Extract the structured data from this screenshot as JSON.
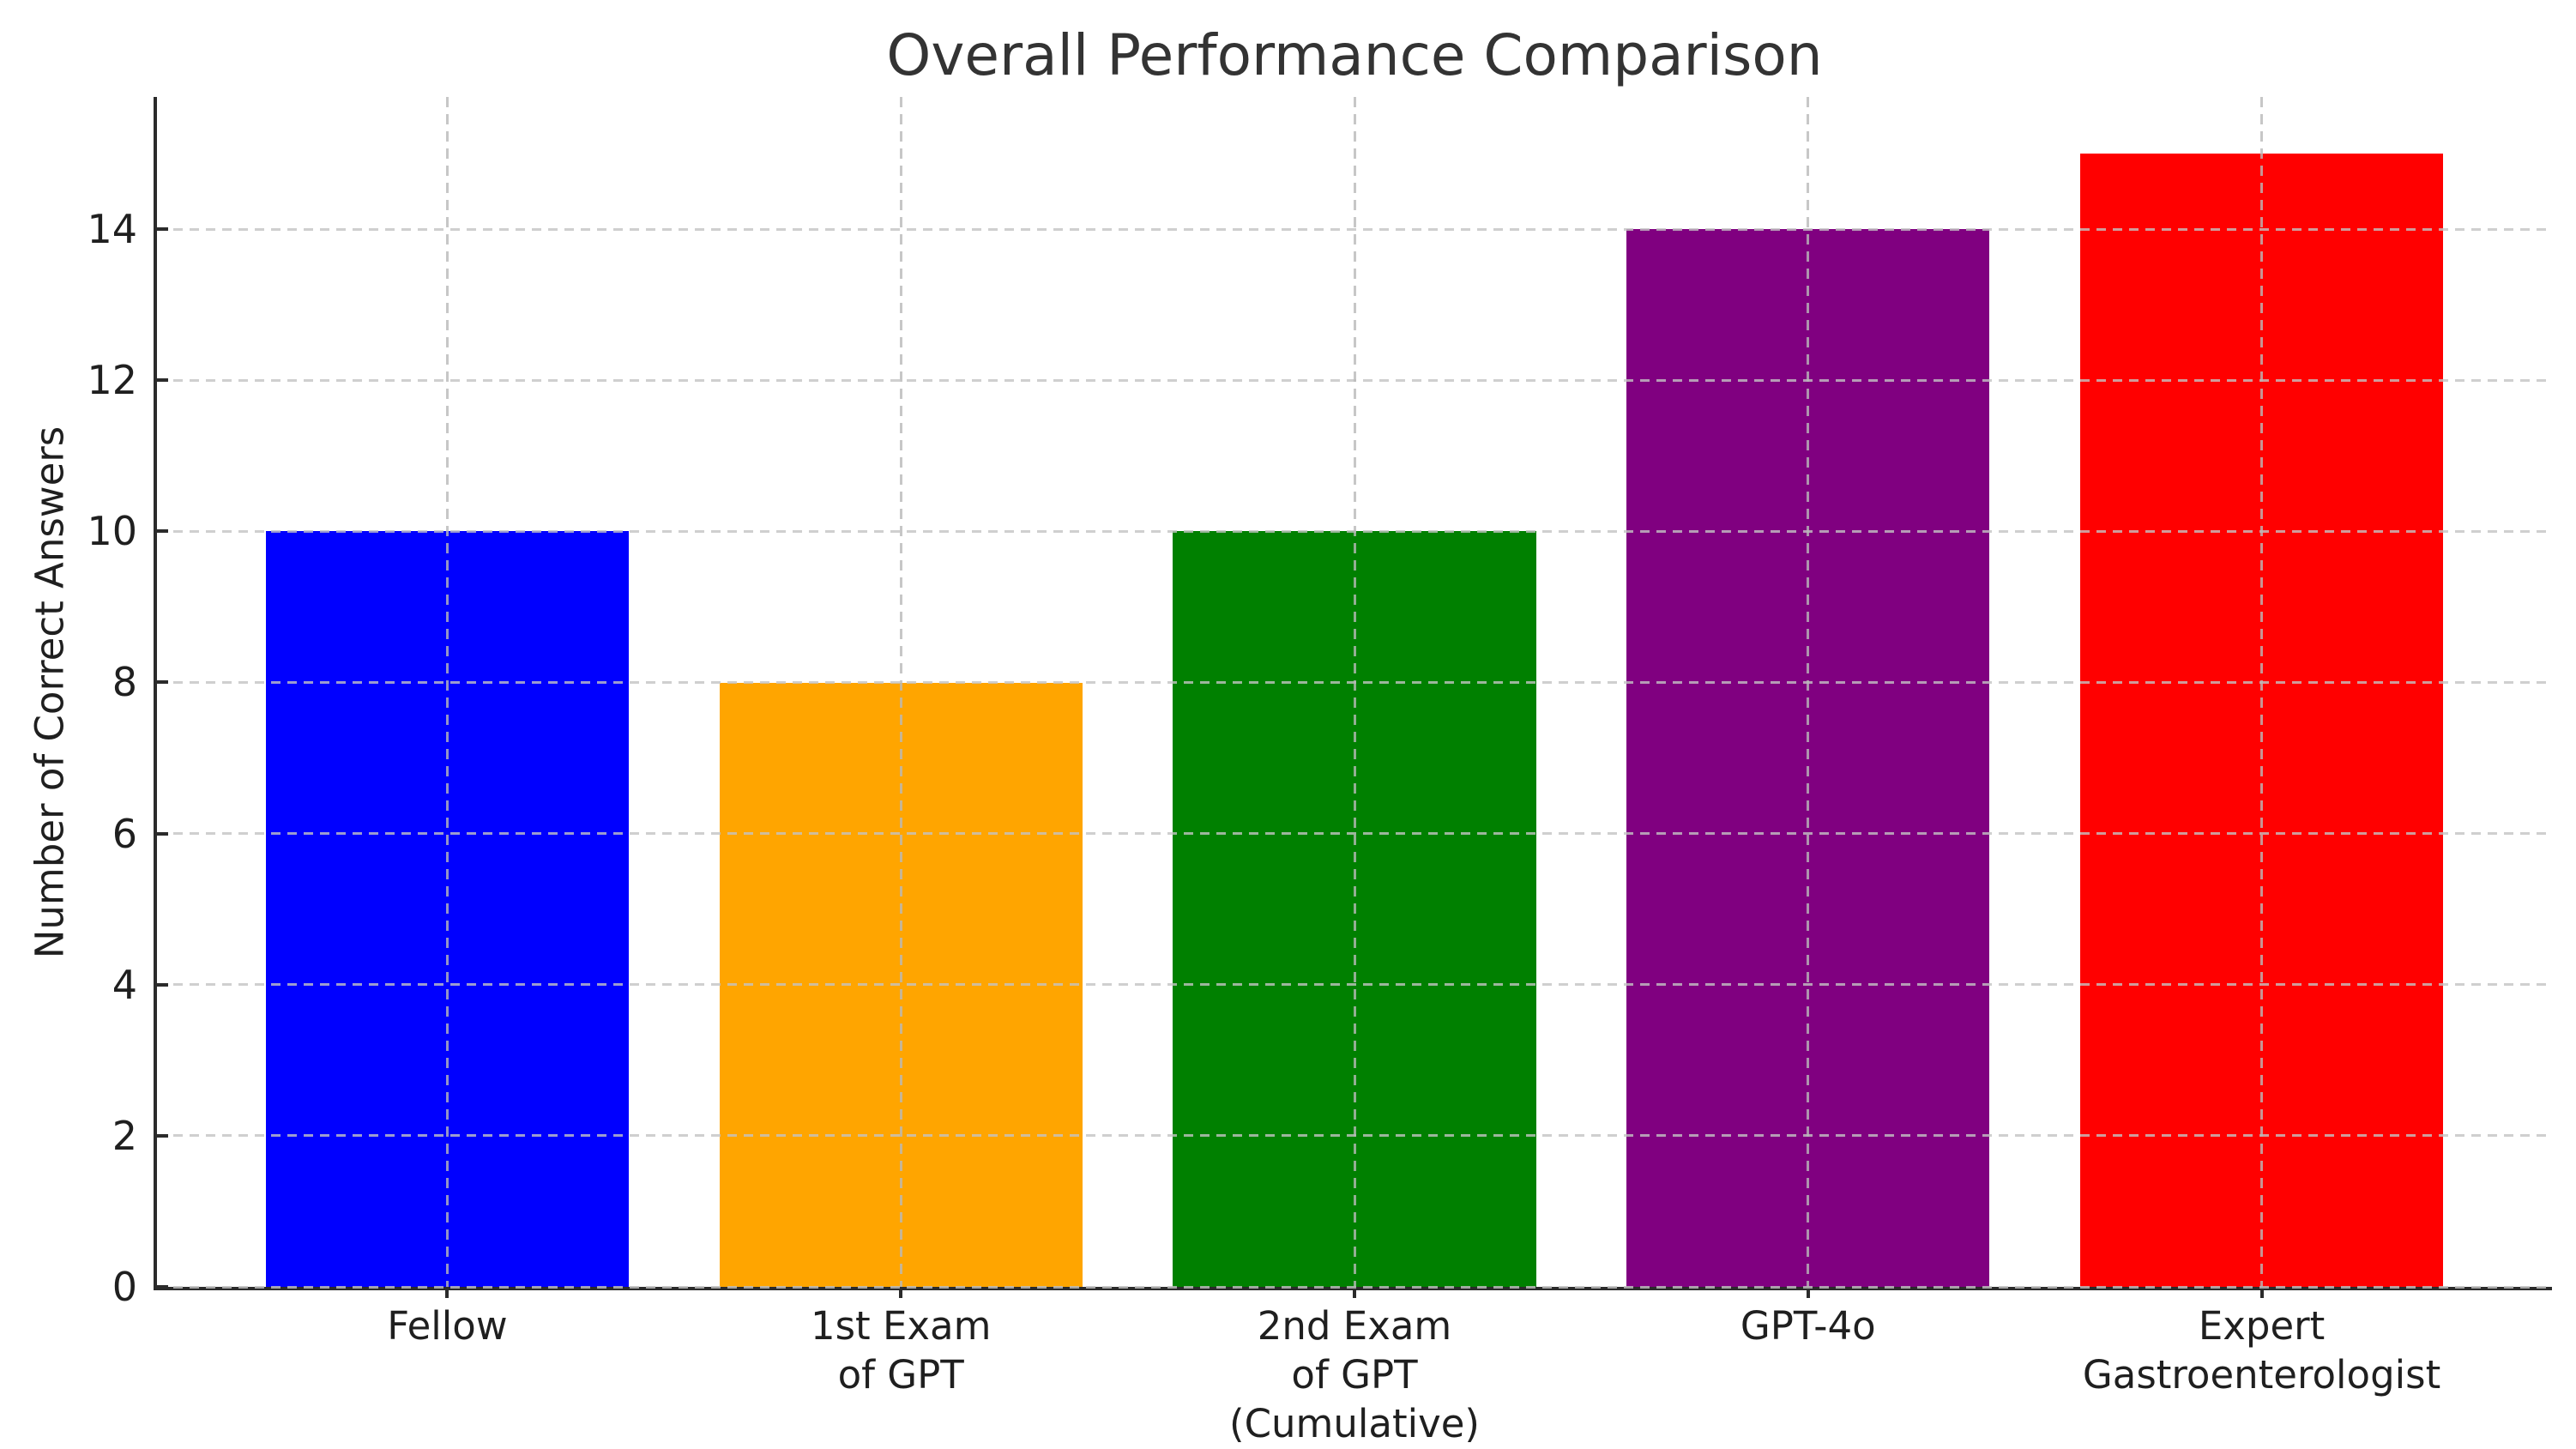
{
  "chart_data": {
    "type": "bar",
    "title": "Overall Performance Comparison",
    "xlabel": "",
    "ylabel": "Number of Correct Answers",
    "categories": [
      "Fellow",
      "1st Exam\nof GPT",
      "2nd Exam\nof GPT\n(Cumulative)",
      "GPT-4o",
      "Expert\nGastroenterologist"
    ],
    "values": [
      10,
      8,
      10,
      14,
      15
    ],
    "bar_colors": [
      "#0000ff",
      "#ffa500",
      "#008000",
      "#800080",
      "#ff0000"
    ],
    "yticks": [
      0,
      2,
      4,
      6,
      8,
      10,
      12,
      14
    ],
    "ylim": [
      0,
      15.75
    ],
    "xlim": [
      -0.64,
      4.64
    ],
    "bar_width": 0.8,
    "grid": "dashed, horizontal and vertical, drawn over bars",
    "legend": "none",
    "spines": "left and bottom only"
  }
}
